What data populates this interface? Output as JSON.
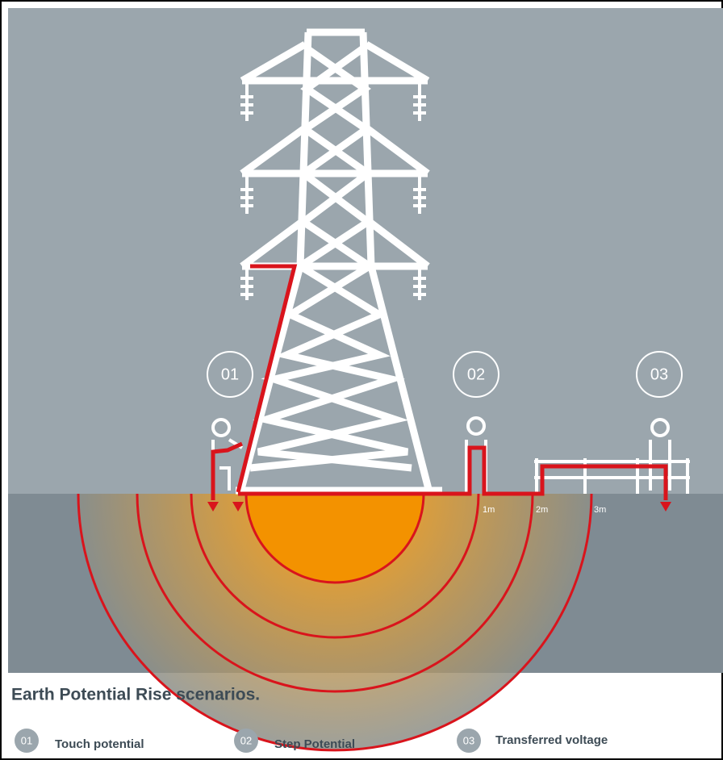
{
  "scenarios": [
    {
      "number": "01",
      "label": "Touch potential"
    },
    {
      "number": "02",
      "label": "Step Potential"
    },
    {
      "number": "03",
      "label": "Transferred voltage"
    }
  ],
  "distances": [
    "1m",
    "2m",
    "3m"
  ],
  "caption": "Earth Potential Rise scenarios."
}
